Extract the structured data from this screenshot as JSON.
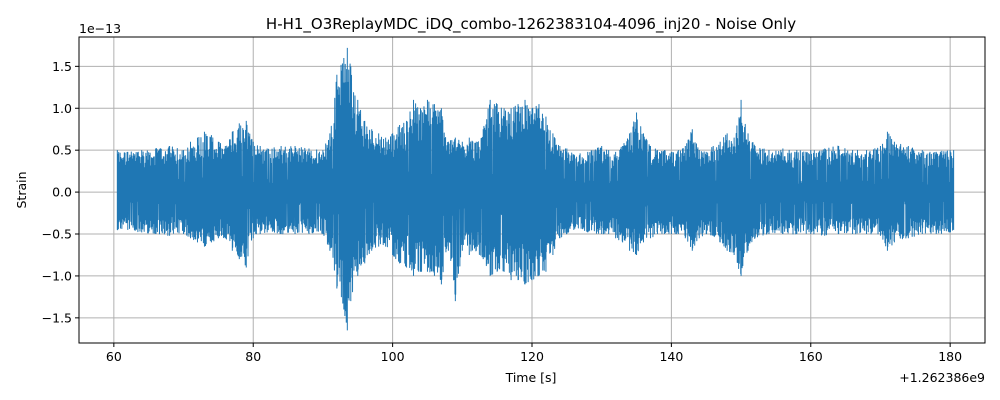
{
  "chart_data": {
    "type": "line",
    "title": "H-H1_O3ReplayMDC_iDQ_combo-1262383104-4096_inj20 - Noise Only",
    "xlabel": "Time [s]",
    "ylabel": "Strain",
    "x_offset_label": "+1.262386e9",
    "y_scale_label": "1e−13",
    "xlim": [
      55,
      185
    ],
    "ylim": [
      -1.8,
      1.85
    ],
    "x_ticks": [
      60,
      80,
      100,
      120,
      140,
      160,
      180
    ],
    "x_tick_labels": [
      "60",
      "80",
      "100",
      "120",
      "140",
      "160",
      "180"
    ],
    "y_ticks": [
      -1.5,
      -1.0,
      -0.5,
      0.0,
      0.5,
      1.0,
      1.5
    ],
    "y_tick_labels": [
      "−1.5",
      "−1.0",
      "−0.5",
      "0.0",
      "0.5",
      "1.0",
      "1.5"
    ],
    "grid": true,
    "series": [
      {
        "color": "#1f77b4",
        "x_range": [
          60.5,
          180.5
        ],
        "envelope": {
          "x": [
            60.5,
            62,
            64,
            66,
            68,
            70,
            71,
            72,
            73,
            74,
            75,
            76,
            77,
            78,
            79,
            80,
            81,
            82,
            84,
            86,
            88,
            90,
            91,
            92,
            93,
            93.5,
            94,
            95,
            96,
            97,
            98,
            99,
            100,
            101,
            102,
            103,
            104,
            105,
            106,
            107,
            108,
            109,
            110,
            111,
            112,
            113,
            114,
            115,
            116,
            117,
            118,
            119,
            120,
            121,
            122,
            123,
            124,
            125,
            126,
            128,
            130,
            131,
            132,
            133,
            134,
            135,
            136,
            137,
            138,
            139,
            140,
            141,
            142,
            143,
            144,
            145,
            146,
            147,
            148,
            149,
            150,
            151,
            152,
            154,
            156,
            158,
            160,
            162,
            164,
            166,
            168,
            170,
            171,
            172,
            174,
            176,
            178,
            180,
            180.5
          ],
          "upper": [
            0.5,
            0.48,
            0.5,
            0.52,
            0.55,
            0.5,
            0.6,
            0.65,
            0.72,
            0.68,
            0.6,
            0.55,
            0.72,
            0.82,
            0.85,
            0.6,
            0.55,
            0.52,
            0.55,
            0.55,
            0.52,
            0.5,
            0.7,
            1.4,
            1.6,
            1.72,
            1.5,
            1.1,
            0.85,
            0.75,
            0.7,
            0.65,
            0.7,
            0.8,
            0.85,
            1.1,
            1.0,
            1.1,
            1.05,
            1.0,
            0.6,
            0.65,
            0.6,
            0.65,
            0.6,
            0.75,
            1.1,
            1.05,
            1.0,
            1.0,
            1.05,
            1.1,
            1.0,
            1.05,
            0.9,
            0.7,
            0.55,
            0.52,
            0.45,
            0.48,
            0.55,
            0.5,
            0.48,
            0.55,
            0.7,
            0.95,
            0.7,
            0.55,
            0.5,
            0.5,
            0.48,
            0.5,
            0.55,
            0.75,
            0.5,
            0.48,
            0.55,
            0.6,
            0.7,
            0.65,
            1.1,
            0.7,
            0.55,
            0.5,
            0.52,
            0.5,
            0.5,
            0.52,
            0.55,
            0.5,
            0.5,
            0.55,
            0.72,
            0.6,
            0.55,
            0.5,
            0.48,
            0.5,
            0.5
          ],
          "lower": [
            -0.45,
            -0.45,
            -0.48,
            -0.5,
            -0.52,
            -0.5,
            -0.55,
            -0.6,
            -0.65,
            -0.6,
            -0.55,
            -0.55,
            -0.7,
            -0.8,
            -0.9,
            -0.55,
            -0.5,
            -0.48,
            -0.5,
            -0.5,
            -0.5,
            -0.5,
            -0.7,
            -1.15,
            -1.4,
            -1.65,
            -1.3,
            -1.0,
            -0.85,
            -0.7,
            -0.65,
            -0.65,
            -0.75,
            -0.85,
            -0.9,
            -1.0,
            -0.95,
            -0.95,
            -1.0,
            -1.1,
            -0.7,
            -1.3,
            -0.7,
            -0.75,
            -0.7,
            -0.8,
            -1.0,
            -0.95,
            -0.95,
            -1.05,
            -1.05,
            -1.1,
            -1.05,
            -1.0,
            -0.95,
            -0.75,
            -0.55,
            -0.5,
            -0.45,
            -0.48,
            -0.5,
            -0.5,
            -0.55,
            -0.6,
            -0.7,
            -0.75,
            -0.6,
            -0.55,
            -0.5,
            -0.5,
            -0.5,
            -0.5,
            -0.55,
            -0.7,
            -0.55,
            -0.5,
            -0.52,
            -0.6,
            -0.7,
            -0.75,
            -1.0,
            -0.7,
            -0.55,
            -0.5,
            -0.5,
            -0.5,
            -0.5,
            -0.52,
            -0.5,
            -0.5,
            -0.5,
            -0.52,
            -0.7,
            -0.6,
            -0.55,
            -0.5,
            -0.5,
            -0.48,
            -0.45
          ]
        }
      }
    ]
  }
}
